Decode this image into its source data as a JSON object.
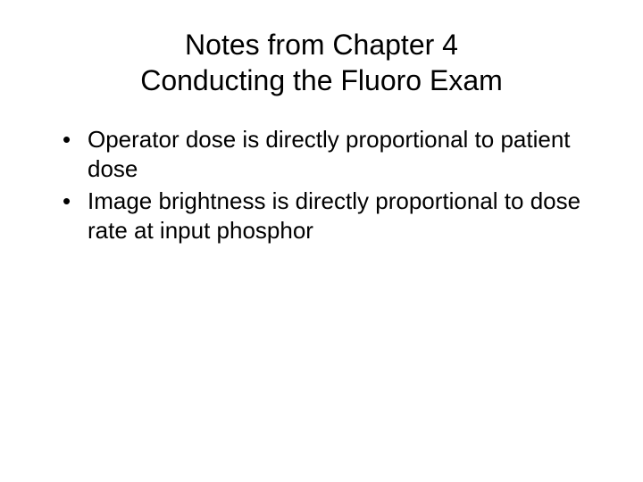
{
  "slide": {
    "title_line1": "Notes from Chapter 4",
    "title_line2": "Conducting the Fluoro Exam",
    "bullets": [
      "Operator dose is directly proportional to patient dose",
      "Image brightness is directly proportional to dose rate at input phosphor"
    ],
    "styling": {
      "background_color": "#ffffff",
      "text_color": "#000000",
      "title_fontsize": 32,
      "body_fontsize": 26,
      "font_family": "Arial"
    }
  }
}
